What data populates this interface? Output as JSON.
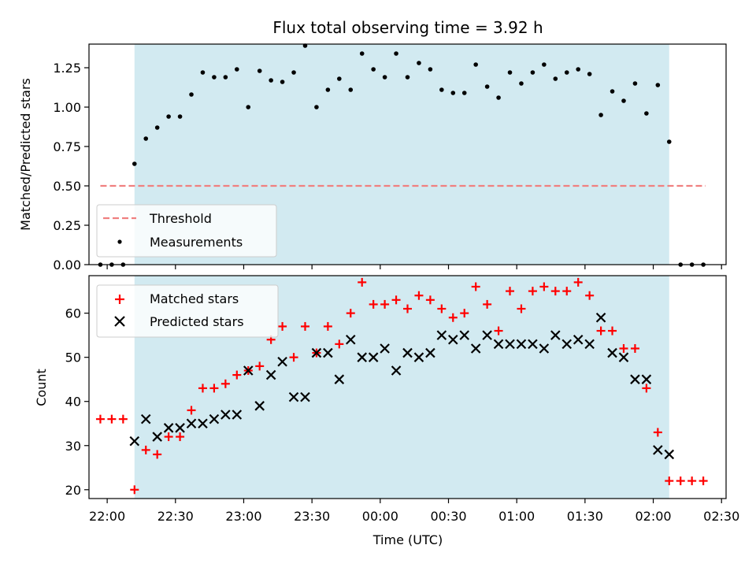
{
  "chart_data": [
    {
      "type": "scatter",
      "title": "Flux total observing time = 3.92 h",
      "ylabel": "Matched/Predicted stars",
      "xlabel": "",
      "ylim": [
        0,
        1.4
      ],
      "yticks": [
        "0.00",
        "0.25",
        "0.50",
        "0.75",
        "1.00",
        "1.25"
      ],
      "yticks_values": [
        0,
        0.25,
        0.5,
        0.75,
        1.0,
        1.25
      ],
      "xlim": [
        "21:52",
        "02:32"
      ],
      "shaded_interval": [
        "22:12",
        "02:07"
      ],
      "shade_color": "#add8e6",
      "grid": false,
      "legend_position": "center-left",
      "threshold": {
        "name": "Threshold",
        "y": 0.5,
        "x_range": [
          "21:57",
          "02:23"
        ],
        "color": "#f08080"
      },
      "series": [
        {
          "name": "Measurements",
          "color": "#000000",
          "marker": "dot",
          "points": [
            [
              "21:57",
              0.0
            ],
            [
              "22:02",
              0.0
            ],
            [
              "22:07",
              0.0
            ],
            [
              "22:12",
              0.64
            ],
            [
              "22:17",
              0.8
            ],
            [
              "22:22",
              0.87
            ],
            [
              "22:27",
              0.94
            ],
            [
              "22:32",
              0.94
            ],
            [
              "22:37",
              1.08
            ],
            [
              "22:42",
              1.22
            ],
            [
              "22:47",
              1.19
            ],
            [
              "22:52",
              1.19
            ],
            [
              "22:57",
              1.24
            ],
            [
              "23:02",
              1.0
            ],
            [
              "23:07",
              1.23
            ],
            [
              "23:12",
              1.17
            ],
            [
              "23:17",
              1.16
            ],
            [
              "23:22",
              1.22
            ],
            [
              "23:27",
              1.39
            ],
            [
              "23:32",
              1.0
            ],
            [
              "23:37",
              1.11
            ],
            [
              "23:42",
              1.18
            ],
            [
              "23:47",
              1.11
            ],
            [
              "23:52",
              1.34
            ],
            [
              "23:57",
              1.24
            ],
            [
              "00:02",
              1.19
            ],
            [
              "00:07",
              1.34
            ],
            [
              "00:12",
              1.19
            ],
            [
              "00:17",
              1.28
            ],
            [
              "00:22",
              1.24
            ],
            [
              "00:27",
              1.11
            ],
            [
              "00:32",
              1.09
            ],
            [
              "00:37",
              1.09
            ],
            [
              "00:42",
              1.27
            ],
            [
              "00:47",
              1.13
            ],
            [
              "00:52",
              1.06
            ],
            [
              "00:57",
              1.22
            ],
            [
              "01:02",
              1.15
            ],
            [
              "01:07",
              1.22
            ],
            [
              "01:12",
              1.27
            ],
            [
              "01:17",
              1.18
            ],
            [
              "01:22",
              1.22
            ],
            [
              "01:27",
              1.24
            ],
            [
              "01:32",
              1.21
            ],
            [
              "01:37",
              0.95
            ],
            [
              "01:42",
              1.1
            ],
            [
              "01:47",
              1.04
            ],
            [
              "01:52",
              1.15
            ],
            [
              "01:57",
              0.96
            ],
            [
              "02:02",
              1.14
            ],
            [
              "02:07",
              0.78
            ],
            [
              "02:12",
              0.0
            ],
            [
              "02:17",
              0.0
            ],
            [
              "02:22",
              0.0
            ]
          ]
        }
      ]
    },
    {
      "type": "scatter",
      "title": "",
      "ylabel": "Count",
      "xlabel": "Time (UTC)",
      "ylim": [
        18,
        68.5
      ],
      "yticks": [
        "20",
        "30",
        "40",
        "50",
        "60"
      ],
      "yticks_values": [
        20,
        30,
        40,
        50,
        60
      ],
      "xlim": [
        "21:52",
        "02:32"
      ],
      "xticks": [
        "22:00",
        "22:30",
        "23:00",
        "23:30",
        "00:00",
        "00:30",
        "01:00",
        "01:30",
        "02:00",
        "02:30"
      ],
      "shaded_interval": [
        "22:12",
        "02:07"
      ],
      "shade_color": "#add8e6",
      "grid": false,
      "legend_position": "top-left",
      "series": [
        {
          "name": "Matched stars",
          "color": "#ff0000",
          "marker": "plus",
          "points": [
            [
              "21:57",
              36
            ],
            [
              "22:02",
              36
            ],
            [
              "22:07",
              36
            ],
            [
              "22:12",
              20
            ],
            [
              "22:17",
              29
            ],
            [
              "22:22",
              28
            ],
            [
              "22:27",
              32
            ],
            [
              "22:32",
              32
            ],
            [
              "22:37",
              38
            ],
            [
              "22:42",
              43
            ],
            [
              "22:47",
              43
            ],
            [
              "22:52",
              44
            ],
            [
              "22:57",
              46
            ],
            [
              "23:02",
              47
            ],
            [
              "23:07",
              48
            ],
            [
              "23:12",
              54
            ],
            [
              "23:17",
              57
            ],
            [
              "23:22",
              50
            ],
            [
              "23:27",
              57
            ],
            [
              "23:32",
              51
            ],
            [
              "23:37",
              57
            ],
            [
              "23:42",
              53
            ],
            [
              "23:47",
              60
            ],
            [
              "23:52",
              67
            ],
            [
              "23:57",
              62
            ],
            [
              "00:02",
              62
            ],
            [
              "00:07",
              63
            ],
            [
              "00:12",
              61
            ],
            [
              "00:17",
              64
            ],
            [
              "00:22",
              63
            ],
            [
              "00:27",
              61
            ],
            [
              "00:32",
              59
            ],
            [
              "00:37",
              60
            ],
            [
              "00:42",
              66
            ],
            [
              "00:47",
              62
            ],
            [
              "00:52",
              56
            ],
            [
              "00:57",
              65
            ],
            [
              "01:02",
              61
            ],
            [
              "01:07",
              65
            ],
            [
              "01:12",
              66
            ],
            [
              "01:17",
              65
            ],
            [
              "01:22",
              65
            ],
            [
              "01:27",
              67
            ],
            [
              "01:32",
              64
            ],
            [
              "01:37",
              56
            ],
            [
              "01:42",
              56
            ],
            [
              "01:47",
              52
            ],
            [
              "01:52",
              52
            ],
            [
              "01:57",
              43
            ],
            [
              "02:02",
              33
            ],
            [
              "02:07",
              22
            ],
            [
              "02:12",
              22
            ],
            [
              "02:17",
              22
            ],
            [
              "02:22",
              22
            ]
          ]
        },
        {
          "name": "Predicted stars",
          "color": "#000000",
          "marker": "x",
          "points": [
            [
              "22:12",
              31
            ],
            [
              "22:17",
              36
            ],
            [
              "22:22",
              32
            ],
            [
              "22:27",
              34
            ],
            [
              "22:32",
              34
            ],
            [
              "22:37",
              35
            ],
            [
              "22:42",
              35
            ],
            [
              "22:47",
              36
            ],
            [
              "22:52",
              37
            ],
            [
              "22:57",
              37
            ],
            [
              "23:02",
              47
            ],
            [
              "23:07",
              39
            ],
            [
              "23:12",
              46
            ],
            [
              "23:17",
              49
            ],
            [
              "23:22",
              41
            ],
            [
              "23:27",
              41
            ],
            [
              "23:32",
              51
            ],
            [
              "23:37",
              51
            ],
            [
              "23:42",
              45
            ],
            [
              "23:47",
              54
            ],
            [
              "23:52",
              50
            ],
            [
              "23:57",
              50
            ],
            [
              "00:02",
              52
            ],
            [
              "00:07",
              47
            ],
            [
              "00:12",
              51
            ],
            [
              "00:17",
              50
            ],
            [
              "00:22",
              51
            ],
            [
              "00:27",
              55
            ],
            [
              "00:32",
              54
            ],
            [
              "00:37",
              55
            ],
            [
              "00:42",
              52
            ],
            [
              "00:47",
              55
            ],
            [
              "00:52",
              53
            ],
            [
              "00:57",
              53
            ],
            [
              "01:02",
              53
            ],
            [
              "01:07",
              53
            ],
            [
              "01:12",
              52
            ],
            [
              "01:17",
              55
            ],
            [
              "01:22",
              53
            ],
            [
              "01:27",
              54
            ],
            [
              "01:32",
              53
            ],
            [
              "01:37",
              59
            ],
            [
              "01:42",
              51
            ],
            [
              "01:47",
              50
            ],
            [
              "01:52",
              45
            ],
            [
              "01:57",
              45
            ],
            [
              "02:02",
              29
            ],
            [
              "02:07",
              28
            ]
          ]
        }
      ]
    }
  ]
}
